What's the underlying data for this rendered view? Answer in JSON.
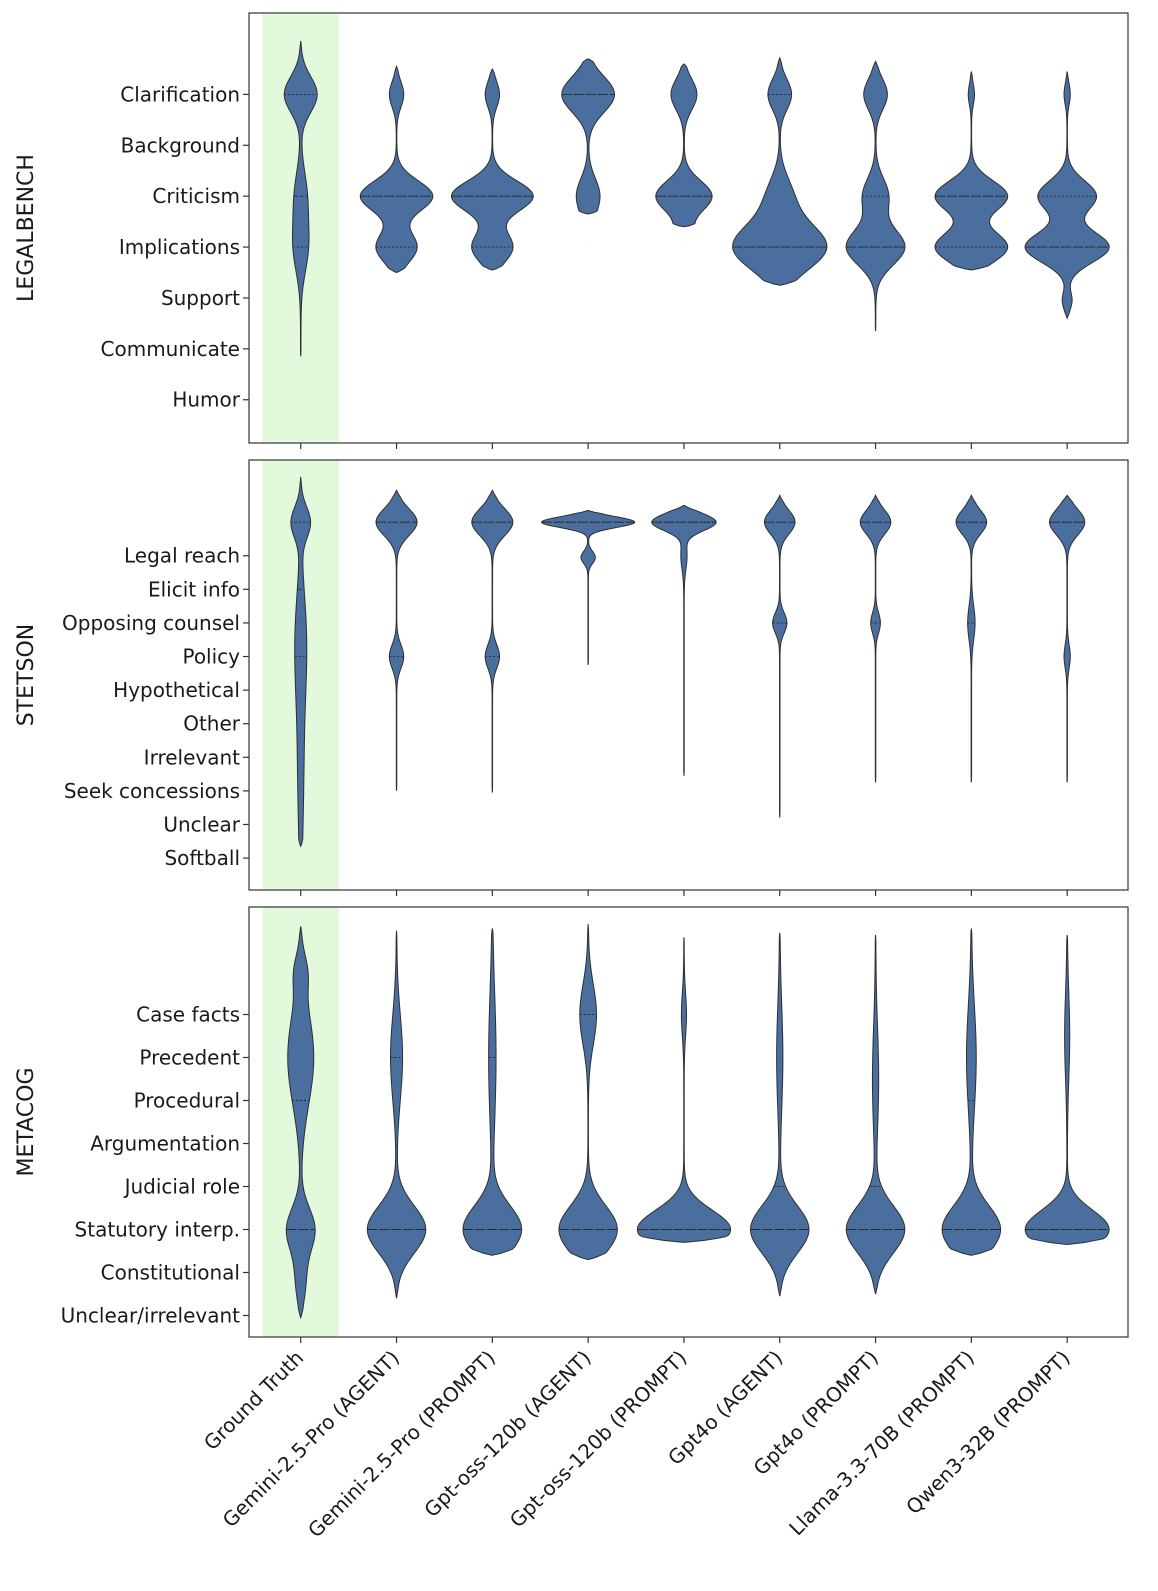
{
  "chart_data": {
    "type": "violin",
    "x_categories": [
      "Ground Truth",
      "Gemini-2.5-Pro (AGENT)",
      "Gemini-2.5-Pro (PROMPT)",
      "Gpt-oss-120b (AGENT)",
      "Gpt-oss-120b (PROMPT)",
      "Gpt4o (AGENT)",
      "Gpt4o (PROMPT)",
      "Llama-3.3-70B (PROMPT)",
      "Qwen3-32B (PROMPT)"
    ],
    "highlight_category": "Ground Truth",
    "colors": {
      "violin": "#4a6f9f",
      "violin_edge": "#2f2f2f",
      "highlight": "#e3f9dc",
      "axes": "#333333"
    },
    "panels": [
      {
        "ylabel": "LEGALBENCH",
        "categories": [
          "Clarification",
          "Background",
          "Criticism",
          "Implications",
          "Support",
          "Communicate",
          "Humor"
        ],
        "ylim": [
          -0.85,
          7.6
        ],
        "violins": [
          {
            "range": [
              0.85,
              7.05
            ],
            "median": 4.0,
            "q1": 3.0,
            "q3": 6.0,
            "peaks": [
              [
                6.0,
                0.28,
                0.35
              ],
              [
                3.0,
                0.12,
                0.5
              ],
              [
                4.0,
                0.1,
                0.5
              ]
            ]
          },
          {
            "range": [
              2.5,
              6.55
            ],
            "median": 4.0,
            "q1": 3.0,
            "q3": 4.0,
            "peaks": [
              [
                6.0,
                0.12,
                0.25
              ],
              [
                4.0,
                0.62,
                0.3
              ],
              [
                3.0,
                0.35,
                0.3
              ]
            ]
          },
          {
            "range": [
              2.55,
              6.5
            ],
            "median": 4.0,
            "q1": 3.0,
            "q3": 4.0,
            "peaks": [
              [
                6.0,
                0.12,
                0.25
              ],
              [
                4.0,
                0.7,
                0.3
              ],
              [
                3.0,
                0.35,
                0.3
              ]
            ]
          },
          {
            "range": [
              3.65,
              6.7
            ],
            "median": 6.0,
            "q1": 3.0,
            "q3": 6.0,
            "peaks": [
              [
                6.0,
                0.45,
                0.35
              ],
              [
                4.0,
                0.2,
                0.35
              ],
              [
                3.0,
                0.2,
                0.3
              ]
            ]
          },
          {
            "range": [
              3.4,
              6.6
            ],
            "median": 4.0,
            "q1": 3.0,
            "q3": 4.0,
            "peaks": [
              [
                6.0,
                0.22,
                0.3
              ],
              [
                4.0,
                0.48,
                0.3
              ],
              [
                3.0,
                0.3,
                0.3
              ]
            ]
          },
          {
            "range": [
              2.25,
              6.72
            ],
            "median": 3.0,
            "q1": 3.0,
            "q3": 6.0,
            "peaks": [
              [
                6.0,
                0.2,
                0.3
              ],
              [
                3.0,
                0.8,
                0.45
              ],
              [
                4.0,
                0.2,
                0.4
              ]
            ]
          },
          {
            "range": [
              1.35,
              6.65
            ],
            "median": 3.0,
            "q1": 3.0,
            "q3": 4.0,
            "peaks": [
              [
                6.0,
                0.2,
                0.3
              ],
              [
                4.0,
                0.22,
                0.35
              ],
              [
                3.0,
                0.5,
                0.35
              ]
            ]
          },
          {
            "range": [
              2.55,
              6.45
            ],
            "median": 4.0,
            "q1": 3.0,
            "q3": 4.0,
            "peaks": [
              [
                6.0,
                0.05,
                0.2
              ],
              [
                4.0,
                0.62,
                0.3
              ],
              [
                3.0,
                0.62,
                0.3
              ]
            ]
          },
          {
            "range": [
              1.6,
              6.45
            ],
            "median": 3.0,
            "q1": 3.0,
            "q3": 4.0,
            "peaks": [
              [
                6.0,
                0.05,
                0.2
              ],
              [
                4.0,
                0.5,
                0.3
              ],
              [
                3.0,
                0.72,
                0.3
              ],
              [
                1.95,
                0.08,
                0.18
              ]
            ]
          }
        ]
      },
      {
        "ylabel": "STETSON",
        "categories": [
          "Legal reach",
          "Elicit info",
          "Opposing counsel",
          "Policy",
          "Hypothetical",
          "Other",
          "Irrelevant",
          "Seek concessions",
          "Unclear",
          "Softball"
        ],
        "ylim": [
          -0.95,
          11.85
        ],
        "violins": [
          {
            "range": [
              0.35,
              11.35
            ],
            "median": 8.0,
            "q1": 6.0,
            "q3": 10.0,
            "peaks": [
              [
                10.0,
                0.16,
                0.45
              ],
              [
                6.5,
                0.08,
                1.5
              ],
              [
                3.0,
                0.05,
                2.5
              ]
            ]
          },
          {
            "range": [
              2.0,
              10.95
            ],
            "median": 10.0,
            "q1": 6.0,
            "q3": 10.0,
            "peaks": [
              [
                10.0,
                0.35,
                0.4
              ],
              [
                6.0,
                0.12,
                0.35
              ]
            ]
          },
          {
            "range": [
              1.95,
              10.95
            ],
            "median": 10.0,
            "q1": 6.0,
            "q3": 10.0,
            "peaks": [
              [
                10.0,
                0.35,
                0.4
              ],
              [
                6.0,
                0.12,
                0.35
              ]
            ]
          },
          {
            "range": [
              5.75,
              10.35
            ],
            "median": 10.0,
            "q1": 10.0,
            "q3": 10.0,
            "peaks": [
              [
                10.0,
                0.8,
                0.16
              ],
              [
                8.95,
                0.12,
                0.18
              ]
            ]
          },
          {
            "range": [
              2.45,
              10.5
            ],
            "median": 10.0,
            "q1": 10.0,
            "q3": 10.0,
            "peaks": [
              [
                10.0,
                0.55,
                0.25
              ],
              [
                9.0,
                0.05,
                0.4
              ]
            ]
          },
          {
            "range": [
              1.2,
              10.8
            ],
            "median": 10.0,
            "q1": 7.0,
            "q3": 10.0,
            "peaks": [
              [
                10.0,
                0.26,
                0.35
              ],
              [
                7.0,
                0.12,
                0.3
              ]
            ]
          },
          {
            "range": [
              2.25,
              10.8
            ],
            "median": 10.0,
            "q1": 7.0,
            "q3": 10.0,
            "peaks": [
              [
                10.0,
                0.26,
                0.35
              ],
              [
                7.0,
                0.08,
                0.3
              ]
            ]
          },
          {
            "range": [
              2.25,
              10.8
            ],
            "median": 10.0,
            "q1": 7.0,
            "q3": 10.0,
            "peaks": [
              [
                10.0,
                0.26,
                0.35
              ],
              [
                7.0,
                0.06,
                0.5
              ]
            ]
          },
          {
            "range": [
              2.25,
              10.8
            ],
            "median": 10.0,
            "q1": 10.0,
            "q3": 10.0,
            "peaks": [
              [
                10.0,
                0.3,
                0.38
              ],
              [
                6.0,
                0.05,
                0.35
              ]
            ]
          }
        ]
      },
      {
        "ylabel": "METACOG",
        "categories": [
          "Case facts",
          "Precedent",
          "Procedural",
          "Argumentation",
          "Judicial role",
          "Statutory interp.",
          "Constitutional",
          "Unclear/irrelevant"
        ],
        "ylim": [
          -0.5,
          9.5
        ],
        "violins": [
          {
            "range": [
              -0.05,
              9.05
            ],
            "median": 2.0,
            "q1": 2.0,
            "q3": 5.0,
            "peaks": [
              [
                6.0,
                0.22,
                1.1
              ],
              [
                2.0,
                0.24,
                0.5
              ],
              [
                8.0,
                0.08,
                0.4
              ],
              [
                0.8,
                0.08,
                0.5
              ]
            ]
          },
          {
            "range": [
              0.4,
              8.95
            ],
            "median": 2.0,
            "q1": 2.0,
            "q3": 6.0,
            "peaks": [
              [
                2.0,
                0.5,
                0.55
              ],
              [
                6.0,
                0.1,
                1.0
              ]
            ]
          },
          {
            "range": [
              1.4,
              9.0
            ],
            "median": 2.0,
            "q1": 2.0,
            "q3": 6.0,
            "peaks": [
              [
                2.0,
                0.5,
                0.55
              ],
              [
                6.0,
                0.06,
                1.5
              ]
            ]
          },
          {
            "range": [
              1.3,
              9.1
            ],
            "median": 2.0,
            "q1": 2.0,
            "q3": 7.0,
            "peaks": [
              [
                2.0,
                0.5,
                0.55
              ],
              [
                7.0,
                0.14,
                0.7
              ]
            ]
          },
          {
            "range": [
              1.7,
              8.8
            ],
            "median": 2.0,
            "q1": 2.0,
            "q3": 2.0,
            "peaks": [
              [
                2.0,
                0.8,
                0.45
              ],
              [
                7.0,
                0.04,
                0.5
              ]
            ]
          },
          {
            "range": [
              0.45,
              8.9
            ],
            "median": 2.0,
            "q1": 2.0,
            "q3": 3.0,
            "peaks": [
              [
                2.0,
                0.5,
                0.55
              ],
              [
                6.0,
                0.05,
                1.2
              ]
            ]
          },
          {
            "range": [
              0.5,
              8.85
            ],
            "median": 2.0,
            "q1": 2.0,
            "q3": 3.0,
            "peaks": [
              [
                2.0,
                0.5,
                0.55
              ],
              [
                5.5,
                0.05,
                1.2
              ]
            ]
          },
          {
            "range": [
              1.4,
              9.0
            ],
            "median": 2.0,
            "q1": 2.0,
            "q3": 5.0,
            "peaks": [
              [
                2.0,
                0.5,
                0.55
              ],
              [
                6.0,
                0.08,
                1.2
              ]
            ]
          },
          {
            "range": [
              1.65,
              8.85
            ],
            "median": 2.0,
            "q1": 2.0,
            "q3": 2.0,
            "peaks": [
              [
                2.0,
                0.72,
                0.45
              ],
              [
                6.5,
                0.04,
                1.0
              ]
            ]
          }
        ]
      }
    ]
  }
}
